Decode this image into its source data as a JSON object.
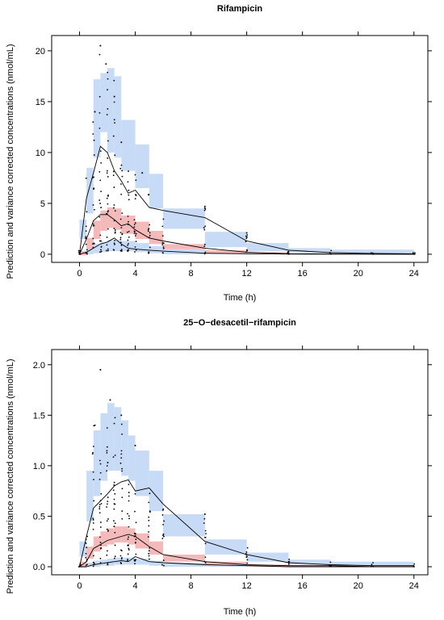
{
  "colors": {
    "pi_outer": "#c7dbf7",
    "pi_median": "#f4b9b9",
    "observed": "#000000",
    "percentile_line": "#000000"
  },
  "chart_data": [
    {
      "type": "line",
      "subtype": "prediction-corrected visual predictive check",
      "title": "Rifampicin",
      "xlabel": "Time (h)",
      "ylabel": "Prediction and variance corrected concentrations (nmol/mL)",
      "xlim": [
        -2,
        25
      ],
      "ylim": [
        -0.8,
        21.5
      ],
      "xticks": [
        0,
        4,
        8,
        12,
        16,
        20,
        24
      ],
      "yticks": [
        0,
        5,
        10,
        15,
        20
      ],
      "bins": [
        {
          "x0": 0.0,
          "x1": 0.5,
          "lo": [
            -0.1,
            0.3
          ],
          "hi": [
            1.5,
            3.4
          ],
          "med": [
            -0.1,
            0.3
          ]
        },
        {
          "x0": 0.5,
          "x1": 1.0,
          "lo": [
            0.0,
            0.6
          ],
          "hi": [
            4.0,
            8.5
          ],
          "med": [
            0.5,
            1.6
          ]
        },
        {
          "x0": 1.0,
          "x1": 1.5,
          "lo": [
            0.1,
            1.0
          ],
          "hi": [
            9.5,
            17.2
          ],
          "med": [
            1.5,
            3.3
          ]
        },
        {
          "x0": 1.5,
          "x1": 2.0,
          "lo": [
            0.2,
            1.2
          ],
          "hi": [
            12.0,
            17.8
          ],
          "med": [
            2.3,
            4.3
          ]
        },
        {
          "x0": 2.0,
          "x1": 2.5,
          "lo": [
            0.3,
            1.4
          ],
          "hi": [
            10.0,
            18.3
          ],
          "med": [
            2.6,
            4.6
          ]
        },
        {
          "x0": 2.5,
          "x1": 3.0,
          "lo": [
            0.3,
            1.4
          ],
          "hi": [
            9.5,
            17.5
          ],
          "med": [
            2.4,
            4.5
          ]
        },
        {
          "x0": 3.0,
          "x1": 4.0,
          "lo": [
            0.3,
            1.3
          ],
          "hi": [
            8.2,
            13.2
          ],
          "med": [
            2.0,
            3.8
          ]
        },
        {
          "x0": 4.0,
          "x1": 5.0,
          "lo": [
            0.2,
            1.1
          ],
          "hi": [
            6.5,
            10.8
          ],
          "med": [
            1.5,
            3.2
          ]
        },
        {
          "x0": 5.0,
          "x1": 6.0,
          "lo": [
            0.1,
            0.8
          ],
          "hi": [
            4.5,
            7.9
          ],
          "med": [
            1.0,
            2.3
          ]
        },
        {
          "x0": 6.0,
          "x1": 9.0,
          "lo": [
            0.0,
            0.5
          ],
          "hi": [
            2.5,
            4.5
          ],
          "med": [
            0.5,
            1.0
          ]
        },
        {
          "x0": 9.0,
          "x1": 12.0,
          "lo": [
            0.0,
            0.2
          ],
          "hi": [
            0.7,
            2.2
          ],
          "med": [
            0.1,
            0.4
          ]
        },
        {
          "x0": 12.0,
          "x1": 15.0,
          "lo": [
            0.0,
            0.1
          ],
          "hi": [
            0.3,
            1.1
          ],
          "med": [
            0.0,
            0.2
          ]
        },
        {
          "x0": 15.0,
          "x1": 18.0,
          "lo": [
            0.0,
            0.05
          ],
          "hi": [
            0.15,
            0.6
          ],
          "med": [
            0.0,
            0.1
          ]
        },
        {
          "x0": 18.0,
          "x1": 24.0,
          "lo": [
            0.0,
            0.05
          ],
          "hi": [
            0.1,
            0.45
          ],
          "med": [
            0.0,
            0.05
          ]
        }
      ],
      "series": [
        {
          "name": "",
          "x": [
            0,
            0.5,
            1,
            1.5,
            2,
            2.5,
            3,
            3.5,
            4,
            5,
            6,
            9,
            12,
            15,
            18,
            21,
            24
          ],
          "values": [
            0,
            5.5,
            8.0,
            10.6,
            10.0,
            8.2,
            7.2,
            6.0,
            6.3,
            4.6,
            4.3,
            3.6,
            1.3,
            0.4,
            0.15,
            0.08,
            0.05
          ]
        },
        {
          "name": "",
          "x": [
            0,
            0.5,
            1,
            1.5,
            2,
            2.5,
            3,
            3.5,
            4,
            5,
            6,
            9,
            12,
            15,
            18,
            21,
            24
          ],
          "values": [
            0,
            1.5,
            3.3,
            3.9,
            3.9,
            3.4,
            2.8,
            3.0,
            2.4,
            1.6,
            1.3,
            0.6,
            0.2,
            0.05,
            0.02,
            0.01,
            0.01
          ]
        },
        {
          "name": "",
          "x": [
            0,
            0.5,
            1,
            1.5,
            2,
            2.5,
            3,
            3.5,
            4,
            5,
            6,
            9,
            12,
            15,
            18,
            21,
            24
          ],
          "values": [
            0,
            0.2,
            0.6,
            1.0,
            1.2,
            1.6,
            1.0,
            0.6,
            0.5,
            0.4,
            0.3,
            0.1,
            0.05,
            0.02,
            0.01,
            0.01,
            0.0
          ]
        }
      ],
      "observed": {
        "times": [
          0,
          0.5,
          1,
          1.5,
          2,
          2.5,
          3,
          3.5,
          4,
          5,
          6,
          9,
          12,
          15,
          18,
          21,
          24
        ],
        "counts": [
          6,
          12,
          18,
          22,
          24,
          22,
          20,
          18,
          18,
          15,
          12,
          10,
          8,
          6,
          5,
          4,
          4
        ],
        "ranges": [
          [
            0,
            0.4
          ],
          [
            0,
            7.5
          ],
          [
            0,
            14
          ],
          [
            0.2,
            20.5
          ],
          [
            0.3,
            18.5
          ],
          [
            0.4,
            17.5
          ],
          [
            0.3,
            11
          ],
          [
            0.3,
            9.5
          ],
          [
            0.2,
            8.5
          ],
          [
            0.1,
            6.2
          ],
          [
            0.1,
            4.6
          ],
          [
            0,
            4.7
          ],
          [
            0,
            2.2
          ],
          [
            0,
            0.8
          ],
          [
            0,
            0.4
          ],
          [
            0,
            0.2
          ],
          [
            0,
            0.15
          ]
        ],
        "points": [
          [
            1.5,
            20.5
          ],
          [
            1.9,
            18.7
          ],
          [
            1.1,
            14.0
          ],
          [
            2.5,
            15.5
          ],
          [
            3.0,
            11.0
          ],
          [
            4.5,
            8.0
          ],
          [
            9.0,
            4.7
          ],
          [
            12.0,
            2.1
          ]
        ]
      }
    },
    {
      "type": "line",
      "subtype": "prediction-corrected visual predictive check",
      "title": "25−O−desacetil−rifampicin",
      "xlabel": "Time (h)",
      "ylabel": "Prediction and variance corrected concentrations (nmol/mL)",
      "xlim": [
        -2,
        25
      ],
      "ylim": [
        -0.08,
        2.15
      ],
      "xticks": [
        0,
        4,
        8,
        12,
        16,
        20,
        24
      ],
      "yticks": [
        0.0,
        0.5,
        1.0,
        1.5,
        2.0
      ],
      "yticklabels": [
        "0.0",
        "0.5",
        "1.0",
        "1.5",
        "2.0"
      ],
      "bins": [
        {
          "x0": 0.0,
          "x1": 0.5,
          "lo": [
            -0.01,
            0.03
          ],
          "hi": [
            0.1,
            0.25
          ],
          "med": [
            0.0,
            0.05
          ]
        },
        {
          "x0": 0.5,
          "x1": 1.0,
          "lo": [
            0.0,
            0.04
          ],
          "hi": [
            0.45,
            0.95
          ],
          "med": [
            0.08,
            0.2
          ]
        },
        {
          "x0": 1.0,
          "x1": 1.5,
          "lo": [
            0.0,
            0.06
          ],
          "hi": [
            0.7,
            1.35
          ],
          "med": [
            0.15,
            0.3
          ]
        },
        {
          "x0": 1.5,
          "x1": 2.0,
          "lo": [
            0.01,
            0.07
          ],
          "hi": [
            0.85,
            1.52
          ],
          "med": [
            0.2,
            0.35
          ]
        },
        {
          "x0": 2.0,
          "x1": 2.5,
          "lo": [
            0.01,
            0.08
          ],
          "hi": [
            0.95,
            1.62
          ],
          "med": [
            0.22,
            0.38
          ]
        },
        {
          "x0": 2.5,
          "x1": 3.0,
          "lo": [
            0.02,
            0.09
          ],
          "hi": [
            0.95,
            1.58
          ],
          "med": [
            0.24,
            0.4
          ]
        },
        {
          "x0": 3.0,
          "x1": 3.5,
          "lo": [
            0.02,
            0.09
          ],
          "hi": [
            0.9,
            1.45
          ],
          "med": [
            0.24,
            0.4
          ]
        },
        {
          "x0": 3.5,
          "x1": 4.0,
          "lo": [
            0.02,
            0.09
          ],
          "hi": [
            0.85,
            1.3
          ],
          "med": [
            0.22,
            0.38
          ]
        },
        {
          "x0": 4.0,
          "x1": 5.0,
          "lo": [
            0.02,
            0.08
          ],
          "hi": [
            0.7,
            1.15
          ],
          "med": [
            0.18,
            0.33
          ]
        },
        {
          "x0": 5.0,
          "x1": 6.0,
          "lo": [
            0.01,
            0.06
          ],
          "hi": [
            0.55,
            0.95
          ],
          "med": [
            0.12,
            0.25
          ]
        },
        {
          "x0": 6.0,
          "x1": 9.0,
          "lo": [
            0.0,
            0.04
          ],
          "hi": [
            0.3,
            0.52
          ],
          "med": [
            0.05,
            0.12
          ]
        },
        {
          "x0": 9.0,
          "x1": 12.0,
          "lo": [
            0.0,
            0.02
          ],
          "hi": [
            0.12,
            0.27
          ],
          "med": [
            0.02,
            0.05
          ]
        },
        {
          "x0": 12.0,
          "x1": 15.0,
          "lo": [
            0.0,
            0.01
          ],
          "hi": [
            0.05,
            0.14
          ],
          "med": [
            0.0,
            0.02
          ]
        },
        {
          "x0": 15.0,
          "x1": 18.0,
          "lo": [
            0.0,
            0.01
          ],
          "hi": [
            0.02,
            0.07
          ],
          "med": [
            0.0,
            0.01
          ]
        },
        {
          "x0": 18.0,
          "x1": 24.0,
          "lo": [
            0.0,
            0.01
          ],
          "hi": [
            0.01,
            0.05
          ],
          "med": [
            0.0,
            0.01
          ]
        }
      ],
      "series": [
        {
          "name": "",
          "x": [
            0,
            0.5,
            1,
            1.5,
            2,
            2.5,
            3,
            3.5,
            4,
            5,
            6,
            9,
            12,
            15,
            18,
            21,
            24
          ],
          "values": [
            0,
            0.3,
            0.58,
            0.65,
            0.72,
            0.8,
            0.84,
            0.86,
            0.75,
            0.78,
            0.62,
            0.25,
            0.12,
            0.04,
            0.02,
            0.01,
            0.01
          ]
        },
        {
          "name": "",
          "x": [
            0,
            0.5,
            1,
            1.5,
            2,
            2.5,
            3,
            3.5,
            4,
            5,
            6,
            9,
            12,
            15,
            18,
            21,
            24
          ],
          "values": [
            0,
            0.05,
            0.18,
            0.22,
            0.26,
            0.28,
            0.3,
            0.32,
            0.3,
            0.2,
            0.12,
            0.05,
            0.02,
            0.01,
            0.01,
            0.0,
            0.0
          ]
        },
        {
          "name": "",
          "x": [
            0,
            0.5,
            1,
            1.5,
            2,
            2.5,
            3,
            3.5,
            4,
            5,
            6,
            9,
            12,
            15,
            18,
            21,
            24
          ],
          "values": [
            0,
            0.0,
            0.02,
            0.03,
            0.04,
            0.05,
            0.06,
            0.05,
            0.1,
            0.05,
            0.04,
            0.02,
            0.01,
            0.0,
            0.0,
            0.0,
            0.0
          ]
        }
      ],
      "observed": {
        "times": [
          0,
          0.5,
          1,
          1.5,
          2,
          2.5,
          3,
          3.5,
          4,
          5,
          6,
          9,
          12,
          15,
          18,
          21,
          24
        ],
        "counts": [
          5,
          10,
          16,
          20,
          22,
          20,
          19,
          18,
          18,
          15,
          12,
          10,
          8,
          6,
          5,
          4,
          4
        ],
        "ranges": [
          [
            0,
            0.03
          ],
          [
            0,
            0.45
          ],
          [
            0,
            1.4
          ],
          [
            0.01,
            1.25
          ],
          [
            0.02,
            1.65
          ],
          [
            0.03,
            1.62
          ],
          [
            0.03,
            1.5
          ],
          [
            0.03,
            1.1
          ],
          [
            0.03,
            1.2
          ],
          [
            0.02,
            0.85
          ],
          [
            0.01,
            0.6
          ],
          [
            0,
            0.52
          ],
          [
            0,
            0.25
          ],
          [
            0,
            0.1
          ],
          [
            0,
            0.06
          ],
          [
            0,
            0.04
          ],
          [
            0,
            0.03
          ]
        ],
        "points": [
          [
            1.5,
            1.95
          ],
          [
            2.2,
            1.65
          ],
          [
            1.1,
            1.4
          ],
          [
            3.0,
            1.5
          ],
          [
            4.0,
            1.2
          ],
          [
            9.0,
            0.52
          ]
        ]
      }
    }
  ]
}
